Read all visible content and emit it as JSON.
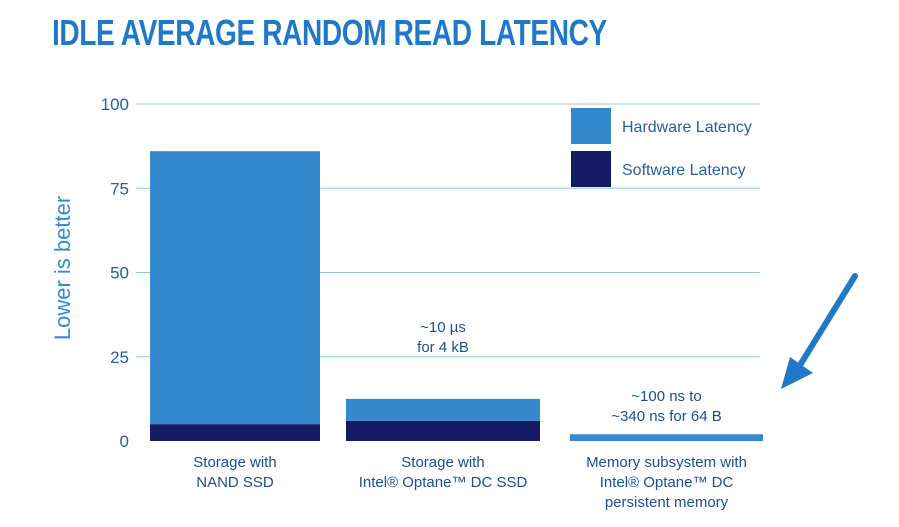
{
  "chart_data": {
    "type": "bar",
    "stacked": true,
    "title": "IDLE AVERAGE RANDOM READ LATENCY",
    "ylabel": "Lower is better",
    "xlabel": "",
    "ylim": [
      0,
      100
    ],
    "yticks": [
      "100",
      "75",
      "50",
      "25",
      "0"
    ],
    "ytick_values": [
      100,
      75,
      50,
      25,
      0
    ],
    "grid": true,
    "legend_position": "top-right",
    "categories": [
      [
        "Storage with",
        "NAND SSD"
      ],
      [
        "Storage with",
        "Intel® Optane™ DC SSD"
      ],
      [
        "Memory subsystem with",
        "Intel® Optane™ DC",
        "persistent memory"
      ]
    ],
    "series": [
      {
        "name": "Software Latency",
        "color": "#131b63",
        "values": [
          5,
          6,
          0
        ]
      },
      {
        "name": "Hardware Latency",
        "color": "#3489cf",
        "values": [
          81,
          6.5,
          2
        ]
      }
    ],
    "annotations": [
      {
        "category_index": 1,
        "lines": [
          "~10 µs",
          "for 4 kB"
        ]
      },
      {
        "category_index": 2,
        "lines": [
          "~100 ns to",
          "~340 ns for 64 B"
        ]
      }
    ],
    "arrow": {
      "points_to_category_index": 2,
      "color": "#1f78c8"
    }
  }
}
